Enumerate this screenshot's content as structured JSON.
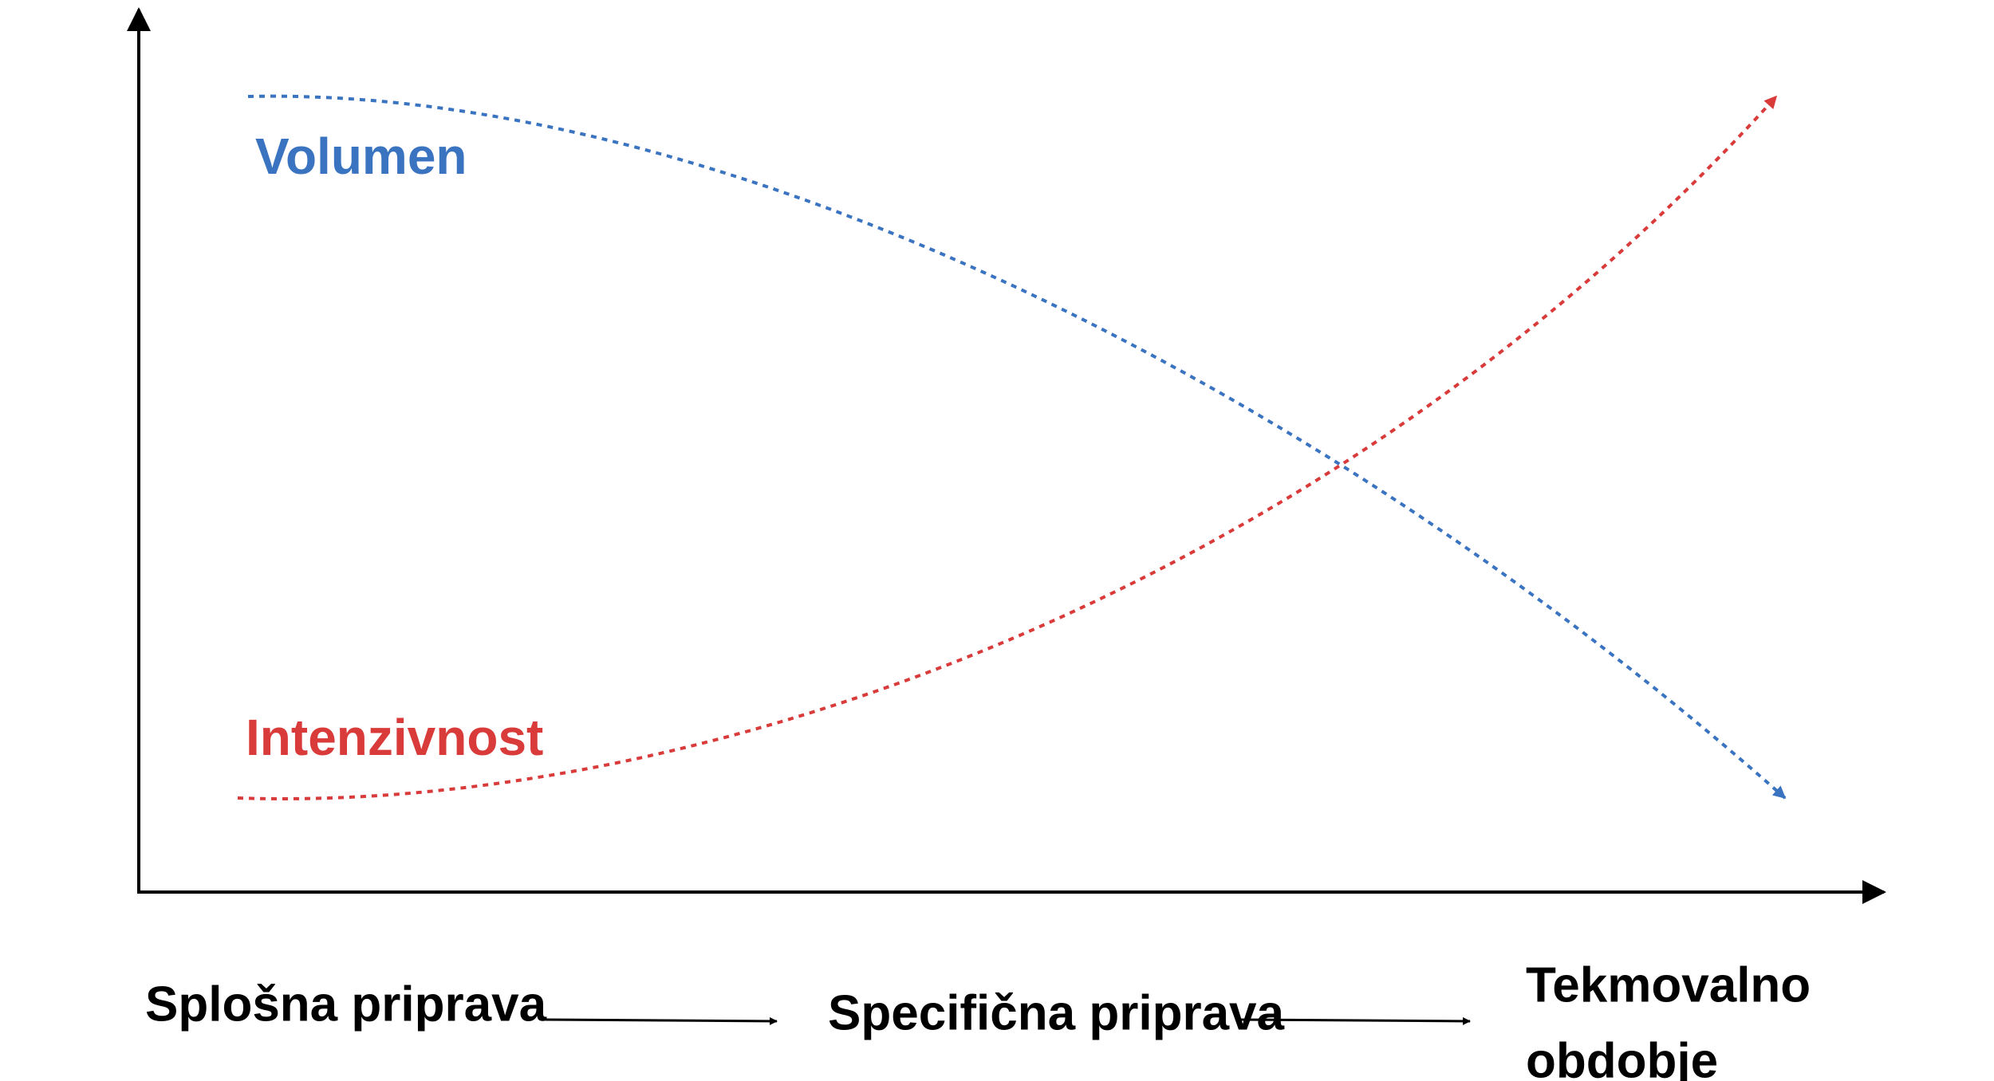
{
  "curves": [
    {
      "label": "Volumen"
    },
    {
      "label": "Intenzivnost"
    }
  ],
  "phases": [
    {
      "lines": [
        "Splošna priprava"
      ]
    },
    {
      "lines": [
        "Specifična priprava"
      ]
    },
    {
      "lines": [
        "Tekmovalno",
        "obdobje"
      ]
    }
  ]
}
